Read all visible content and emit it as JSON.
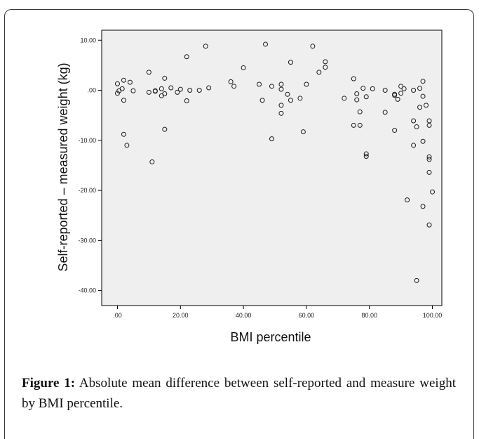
{
  "chart_data": {
    "type": "scatter",
    "xlabel": "BMI percentile",
    "ylabel": "Self-reported – measured weight (kg)",
    "xlim": [
      -5,
      103
    ],
    "ylim": [
      -43,
      12
    ],
    "xticks": [
      0,
      20,
      40,
      60,
      80,
      100
    ],
    "xtick_labels": [
      ".00",
      "20.00",
      "40.00",
      "60.00",
      "80.00",
      "100.00"
    ],
    "yticks": [
      10,
      0,
      -10,
      -20,
      -30,
      -40
    ],
    "ytick_labels": [
      "10.00",
      ".00",
      "-10.00",
      "-20.00",
      "-30.00",
      "-40.00"
    ],
    "grid": false,
    "points": [
      [
        0.0,
        1.3
      ],
      [
        0.0,
        -0.6
      ],
      [
        0.5,
        -0.1
      ],
      [
        1.5,
        0.3
      ],
      [
        2.0,
        2.0
      ],
      [
        2.0,
        -2.0
      ],
      [
        2.0,
        -8.8
      ],
      [
        3.0,
        -11.0
      ],
      [
        4.0,
        1.6
      ],
      [
        5.0,
        -0.1
      ],
      [
        10.0,
        3.6
      ],
      [
        10.0,
        -0.4
      ],
      [
        11.0,
        -14.3
      ],
      [
        12.0,
        -0.1
      ],
      [
        12.0,
        -0.2
      ],
      [
        14.0,
        0.3
      ],
      [
        14.0,
        -1.1
      ],
      [
        15.0,
        2.4
      ],
      [
        15.0,
        -7.8
      ],
      [
        15.0,
        -0.7
      ],
      [
        17.0,
        0.5
      ],
      [
        19.0,
        -0.4
      ],
      [
        20.0,
        0.2
      ],
      [
        22.0,
        6.7
      ],
      [
        22.0,
        -2.1
      ],
      [
        23.0,
        0.0
      ],
      [
        26.0,
        0.0
      ],
      [
        28.0,
        8.8
      ],
      [
        29.0,
        0.5
      ],
      [
        36.0,
        1.7
      ],
      [
        37.0,
        0.8
      ],
      [
        40.0,
        4.5
      ],
      [
        45.0,
        1.2
      ],
      [
        46.0,
        -2.0
      ],
      [
        47.0,
        9.2
      ],
      [
        49.0,
        0.8
      ],
      [
        49.0,
        -9.7
      ],
      [
        52.0,
        1.2
      ],
      [
        52.0,
        0.2
      ],
      [
        52.0,
        -3.0
      ],
      [
        52.0,
        -4.6
      ],
      [
        54.0,
        -0.8
      ],
      [
        55.0,
        5.6
      ],
      [
        55.0,
        -2.0
      ],
      [
        58.0,
        -1.6
      ],
      [
        59.0,
        -8.3
      ],
      [
        60.0,
        1.2
      ],
      [
        62.0,
        8.8
      ],
      [
        64.0,
        3.6
      ],
      [
        66.0,
        5.7
      ],
      [
        66.0,
        4.6
      ],
      [
        72.0,
        -1.6
      ],
      [
        75.0,
        2.3
      ],
      [
        75.0,
        -7.0
      ],
      [
        76.0,
        -0.7
      ],
      [
        76.0,
        -1.9
      ],
      [
        77.0,
        -4.3
      ],
      [
        77.0,
        -7.0
      ],
      [
        78.0,
        0.4
      ],
      [
        79.0,
        -1.3
      ],
      [
        79.0,
        -12.7
      ],
      [
        79.0,
        -13.2
      ],
      [
        81.0,
        0.3
      ],
      [
        85.0,
        0.0
      ],
      [
        85.0,
        -4.4
      ],
      [
        88.0,
        -0.8
      ],
      [
        88.0,
        -1.0
      ],
      [
        88.0,
        -8.0
      ],
      [
        89.0,
        -1.8
      ],
      [
        90.0,
        0.8
      ],
      [
        90.0,
        -0.6
      ],
      [
        91.0,
        0.3
      ],
      [
        92.0,
        -21.9
      ],
      [
        94.0,
        0.0
      ],
      [
        94.0,
        -6.1
      ],
      [
        94.0,
        -11.0
      ],
      [
        95.0,
        -7.3
      ],
      [
        95.0,
        -38.0
      ],
      [
        96.0,
        0.4
      ],
      [
        96.0,
        -3.4
      ],
      [
        97.0,
        1.8
      ],
      [
        97.0,
        -1.2
      ],
      [
        97.0,
        -10.2
      ],
      [
        97.0,
        -23.2
      ],
      [
        98.0,
        -3.0
      ],
      [
        99.0,
        -6.1
      ],
      [
        99.0,
        -7.0
      ],
      [
        99.0,
        -13.3
      ],
      [
        99.0,
        -13.8
      ],
      [
        99.0,
        -16.4
      ],
      [
        99.0,
        -26.9
      ],
      [
        100.0,
        -20.3
      ]
    ]
  },
  "caption": {
    "label": "Figure 1:",
    "text": " Absolute mean difference between self-reported and measure weight by BMI percentile."
  }
}
